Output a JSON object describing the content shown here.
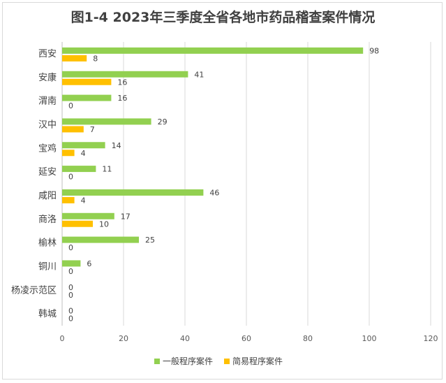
{
  "chart_data": {
    "type": "bar",
    "orientation": "horizontal",
    "title": "图1-4  2023年三季度全省各地市药品稽查案件情况",
    "categories": [
      "西安",
      "安康",
      "渭南",
      "汉中",
      "宝鸡",
      "延安",
      "咸阳",
      "商洛",
      "榆林",
      "铜川",
      "杨凌示范区",
      "韩城"
    ],
    "series": [
      {
        "name": "一般程序案件",
        "color": "#92d050",
        "values": [
          98,
          41,
          16,
          29,
          14,
          11,
          46,
          17,
          25,
          6,
          0,
          0
        ]
      },
      {
        "name": "简易程序案件",
        "color": "#ffc000",
        "values": [
          8,
          16,
          0,
          7,
          4,
          0,
          4,
          10,
          0,
          0,
          0,
          0
        ]
      }
    ],
    "xlim": [
      0,
      120
    ],
    "xticks": [
      0,
      20,
      40,
      60,
      80,
      100,
      120
    ],
    "xlabel": "",
    "ylabel": "",
    "grid": "vertical",
    "legend": "bottom"
  }
}
